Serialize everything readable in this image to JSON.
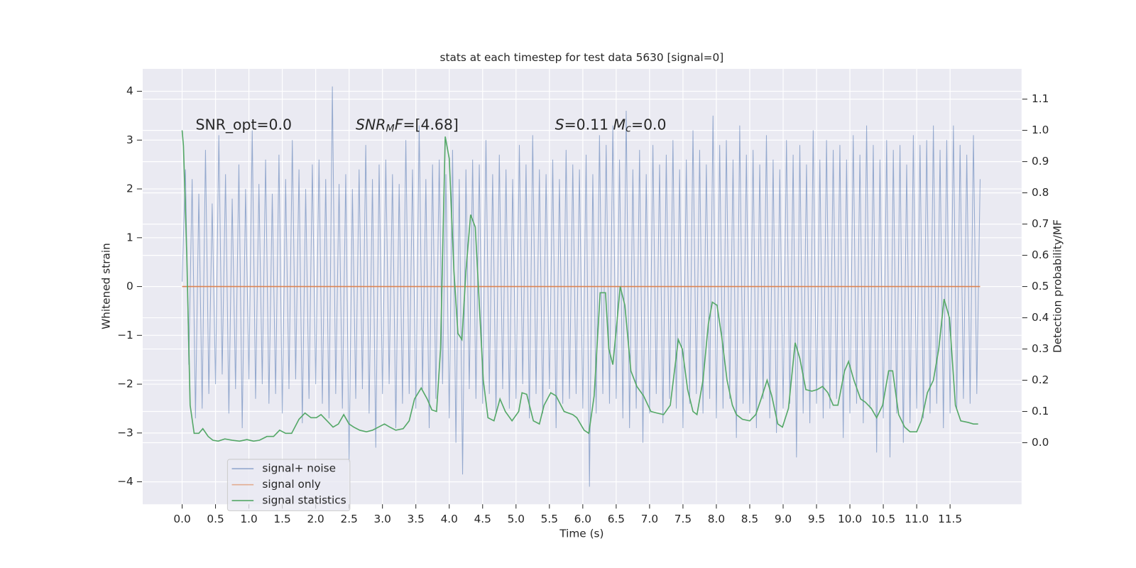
{
  "chart_data": {
    "type": "line",
    "title": "stats at each timestep for test data 5630 [signal=0]",
    "xlabel": "Time (s)",
    "ylabel": "Whitened strain",
    "y2label": "Detection probability/MF",
    "xlim": [
      -0.59,
      12.57
    ],
    "ylim": [
      -4.46,
      4.46
    ],
    "y2lim": [
      -0.197,
      1.197
    ],
    "xticks": [
      {
        "value": 0,
        "label": "0.0"
      },
      {
        "value": 0.5,
        "label": "0.5"
      },
      {
        "value": 1,
        "label": "1.0"
      },
      {
        "value": 1.5,
        "label": "1.5"
      },
      {
        "value": 2,
        "label": "2.0"
      },
      {
        "value": 2.5,
        "label": "2.5"
      },
      {
        "value": 3,
        "label": "3.0"
      },
      {
        "value": 3.5,
        "label": "3.5"
      },
      {
        "value": 4,
        "label": "4.0"
      },
      {
        "value": 4.5,
        "label": "4.5"
      },
      {
        "value": 5,
        "label": "5.0"
      },
      {
        "value": 5.5,
        "label": "5.5"
      },
      {
        "value": 6,
        "label": "6.0"
      },
      {
        "value": 6.5,
        "label": "6.5"
      },
      {
        "value": 7,
        "label": "7.0"
      },
      {
        "value": 7.5,
        "label": "7.5"
      },
      {
        "value": 8,
        "label": "8.0"
      },
      {
        "value": 8.5,
        "label": "8.5"
      },
      {
        "value": 9,
        "label": "9.0"
      },
      {
        "value": 9.5,
        "label": "9.5"
      },
      {
        "value": 10,
        "label": "10.0"
      },
      {
        "value": 10.5,
        "label": "10.5"
      },
      {
        "value": 11,
        "label": "11.0"
      },
      {
        "value": 11.5,
        "label": "11.5"
      }
    ],
    "yticks": [
      {
        "value": -4,
        "label": "−4"
      },
      {
        "value": -3,
        "label": "−3"
      },
      {
        "value": -2,
        "label": "−2"
      },
      {
        "value": -1,
        "label": "−1"
      },
      0,
      1,
      2,
      3,
      4
    ],
    "y2ticks": [
      {
        "value": 0,
        "label": "0.0"
      },
      {
        "value": 0.1,
        "label": "0.1"
      },
      {
        "value": 0.2,
        "label": "0.2"
      },
      {
        "value": 0.3,
        "label": "0.3"
      },
      {
        "value": 0.4,
        "label": "0.4"
      },
      {
        "value": 0.5,
        "label": "0.5"
      },
      {
        "value": 0.6,
        "label": "0.6"
      },
      {
        "value": 0.7,
        "label": "0.7"
      },
      {
        "value": 0.8,
        "label": "0.8"
      },
      {
        "value": 0.9,
        "label": "0.9"
      },
      {
        "value": 1,
        "label": "1.0"
      },
      {
        "value": 1.1,
        "label": "1.1"
      }
    ],
    "grid": true,
    "legend": "lower left",
    "annotations": [
      [
        {
          "text": "SNR_opt=0.0"
        }
      ],
      [
        {
          "text": "SNR",
          "italic": true
        },
        {
          "text": "M",
          "italic": true,
          "sub": true
        },
        {
          "text": "F",
          "italic": true
        },
        {
          "text": "=[4.68]"
        }
      ],
      [
        {
          "text": "S",
          "italic": true
        },
        {
          "text": "=0.11  "
        },
        {
          "text": "M",
          "italic": true
        },
        {
          "text": "c",
          "italic": true,
          "sub": true
        },
        {
          "text": "=0.0"
        }
      ]
    ],
    "series": [
      {
        "name": "signal+ noise",
        "color": "#4c72b0",
        "x": [
          0,
          0.05,
          0.1,
          0.15,
          0.2,
          0.25,
          0.3,
          0.35,
          0.4,
          0.45,
          0.5,
          0.55,
          0.6,
          0.65,
          0.7,
          0.75,
          0.8,
          0.85,
          0.9,
          0.95,
          1,
          1.05,
          1.1,
          1.15,
          1.2,
          1.25,
          1.3,
          1.35,
          1.4,
          1.45,
          1.5,
          1.55,
          1.6,
          1.65,
          1.7,
          1.75,
          1.8,
          1.85,
          1.9,
          1.95,
          2,
          2.05,
          2.1,
          2.15,
          2.2,
          2.25,
          2.3,
          2.35,
          2.4,
          2.45,
          2.5,
          2.55,
          2.6,
          2.65,
          2.7,
          2.75,
          2.8,
          2.85,
          2.9,
          2.95,
          3,
          3.05,
          3.1,
          3.15,
          3.2,
          3.25,
          3.3,
          3.35,
          3.4,
          3.45,
          3.5,
          3.55,
          3.6,
          3.65,
          3.7,
          3.75,
          3.8,
          3.85,
          3.9,
          3.95,
          4,
          4.05,
          4.1,
          4.15,
          4.2,
          4.25,
          4.3,
          4.35,
          4.4,
          4.45,
          4.5,
          4.55,
          4.6,
          4.65,
          4.7,
          4.75,
          4.8,
          4.85,
          4.9,
          4.95,
          5,
          5.05,
          5.1,
          5.15,
          5.2,
          5.25,
          5.3,
          5.35,
          5.4,
          5.45,
          5.5,
          5.55,
          5.6,
          5.65,
          5.7,
          5.75,
          5.8,
          5.85,
          5.9,
          5.95,
          6,
          6.05,
          6.1,
          6.15,
          6.2,
          6.25,
          6.3,
          6.35,
          6.4,
          6.45,
          6.5,
          6.55,
          6.6,
          6.65,
          6.7,
          6.75,
          6.8,
          6.85,
          6.9,
          6.95,
          7,
          7.05,
          7.1,
          7.15,
          7.2,
          7.25,
          7.3,
          7.35,
          7.4,
          7.45,
          7.5,
          7.55,
          7.6,
          7.65,
          7.7,
          7.75,
          7.8,
          7.85,
          7.9,
          7.95,
          8,
          8.05,
          8.1,
          8.15,
          8.2,
          8.25,
          8.3,
          8.35,
          8.4,
          8.45,
          8.5,
          8.55,
          8.6,
          8.65,
          8.7,
          8.75,
          8.8,
          8.85,
          8.9,
          8.95,
          9,
          9.05,
          9.1,
          9.15,
          9.2,
          9.25,
          9.3,
          9.35,
          9.4,
          9.45,
          9.5,
          9.55,
          9.6,
          9.65,
          9.7,
          9.75,
          9.8,
          9.85,
          9.9,
          9.95,
          10,
          10.05,
          10.1,
          10.15,
          10.2,
          10.25,
          10.3,
          10.35,
          10.4,
          10.45,
          10.5,
          10.55,
          10.6,
          10.65,
          10.7,
          10.75,
          10.8,
          10.85,
          10.9,
          10.95,
          11,
          11.05,
          11.1,
          11.15,
          11.2,
          11.25,
          11.3,
          11.35,
          11.4,
          11.45,
          11.5,
          11.55,
          11.6,
          11.65,
          11.7,
          11.75,
          11.8,
          11.85,
          11.9,
          11.95
        ],
        "values": [
          0.1,
          2.4,
          -1.6,
          2.2,
          -2.7,
          1.9,
          -2.5,
          2.8,
          -2.2,
          1.7,
          -2.0,
          3.1,
          -1.8,
          2.3,
          -2.6,
          1.8,
          -2.1,
          2.5,
          -2.9,
          2.0,
          -1.9,
          3.2,
          -2.3,
          2.1,
          -2.0,
          2.6,
          -2.4,
          1.9,
          -2.2,
          2.7,
          -2.6,
          2.2,
          -2.1,
          3.0,
          -1.9,
          2.4,
          -2.8,
          2.0,
          -2.3,
          2.5,
          -2.0,
          2.6,
          -2.4,
          2.2,
          -2.7,
          4.1,
          -2.2,
          2.1,
          -2.5,
          2.3,
          -3.6,
          2.0,
          -2.3,
          2.4,
          -2.1,
          2.9,
          -2.6,
          2.2,
          -3.3,
          2.5,
          -2.2,
          2.6,
          -2.0,
          2.3,
          -2.9,
          2.1,
          -2.4,
          3.0,
          -2.2,
          2.4,
          -2.5,
          3.3,
          -2.1,
          2.2,
          -2.9,
          2.5,
          -2.3,
          2.6,
          -2.0,
          2.3,
          -2.7,
          2.8,
          -3.2,
          2.2,
          -3.85,
          2.4,
          -2.1,
          2.6,
          -2.3,
          2.5,
          -2.4,
          3.0,
          -2.2,
          2.3,
          -2.6,
          2.7,
          -2.1,
          2.4,
          -2.5,
          2.2,
          -2.3,
          2.9,
          -2.0,
          2.5,
          -2.7,
          3.1,
          -2.2,
          2.4,
          -2.6,
          2.3,
          -2.1,
          2.6,
          -2.9,
          2.2,
          -2.4,
          2.8,
          -2.3,
          2.5,
          -2.2,
          2.4,
          -2.5,
          2.7,
          -4.1,
          2.3,
          -2.6,
          3.1,
          -2.2,
          2.9,
          -2.4,
          3.3,
          -2.3,
          2.6,
          -2.7,
          3.6,
          -2.9,
          2.4,
          -2.5,
          2.8,
          -3.2,
          2.3,
          -2.6,
          2.9,
          -2.2,
          2.5,
          -2.8,
          2.7,
          -2.3,
          3.0,
          -2.5,
          2.4,
          -2.9,
          2.6,
          -2.4,
          3.2,
          -2.2,
          2.8,
          -2.6,
          2.5,
          -2.3,
          3.5,
          -2.7,
          2.9,
          -2.5,
          3.0,
          -2.3,
          2.6,
          -3.1,
          3.3,
          -2.4,
          2.7,
          -2.6,
          2.8,
          -2.9,
          2.5,
          -2.3,
          3.1,
          -2.7,
          2.6,
          -3.0,
          2.4,
          -2.5,
          3.0,
          -2.4,
          2.7,
          -3.5,
          2.9,
          -2.6,
          2.5,
          -2.8,
          3.2,
          -2.4,
          2.6,
          -2.7,
          3.0,
          -2.5,
          2.8,
          -2.3,
          2.9,
          -3.1,
          2.6,
          -2.6,
          3.1,
          -2.4,
          2.7,
          -2.8,
          3.3,
          -2.5,
          2.9,
          -3.4,
          2.6,
          -2.7,
          3.0,
          -3.5,
          2.8,
          -2.6,
          2.9,
          -3.2,
          2.5,
          -2.8,
          3.1,
          -2.5,
          2.9,
          -2.7,
          3.0,
          -2.6,
          3.3,
          -2.4,
          2.8,
          -2.9,
          3.0,
          -2.6,
          3.3,
          -2.5,
          2.9,
          -2.3,
          2.7,
          -2.4,
          3.1,
          -2.2,
          2.2
        ]
      },
      {
        "name": "signal only",
        "color": "#dd8452",
        "x": [
          0,
          11.95
        ],
        "values": [
          0,
          0
        ]
      },
      {
        "name": "signal statistics",
        "color": "#55a868",
        "axis": "y2",
        "x": [
          0,
          0.02,
          0.07,
          0.12,
          0.18,
          0.25,
          0.31,
          0.39,
          0.46,
          0.54,
          0.64,
          0.75,
          0.86,
          0.97,
          1.07,
          1.16,
          1.27,
          1.37,
          1.46,
          1.55,
          1.64,
          1.75,
          1.84,
          1.93,
          2.01,
          2.08,
          2.17,
          2.26,
          2.34,
          2.42,
          2.5,
          2.57,
          2.66,
          2.76,
          2.85,
          2.94,
          3.03,
          3.11,
          3.2,
          3.31,
          3.4,
          3.48,
          3.58,
          3.67,
          3.74,
          3.81,
          3.87,
          3.94,
          4.0,
          4.07,
          4.13,
          4.19,
          4.25,
          4.32,
          4.39,
          4.51,
          4.58,
          4.67,
          4.76,
          4.84,
          4.94,
          5.04,
          5.09,
          5.16,
          5.26,
          5.35,
          5.42,
          5.52,
          5.6,
          5.72,
          5.85,
          5.91,
          6.02,
          6.09,
          6.17,
          6.26,
          6.34,
          6.39,
          6.45,
          6.5,
          6.56,
          6.63,
          6.72,
          6.81,
          6.91,
          7.02,
          7.11,
          7.21,
          7.31,
          7.43,
          7.49,
          7.57,
          7.65,
          7.71,
          7.8,
          7.88,
          7.94,
          8.01,
          8.08,
          8.16,
          8.24,
          8.3,
          8.39,
          8.5,
          8.59,
          8.67,
          8.76,
          8.83,
          8.92,
          8.99,
          9.08,
          9.18,
          9.25,
          9.34,
          9.43,
          9.51,
          9.59,
          9.67,
          9.75,
          9.82,
          9.92,
          9.98,
          10.06,
          10.16,
          10.23,
          10.32,
          10.4,
          10.49,
          10.58,
          10.64,
          10.73,
          10.82,
          10.9,
          11.0,
          11.07,
          11.16,
          11.25,
          11.33,
          11.41,
          11.49,
          11.58,
          11.66,
          11.77,
          11.85,
          11.92
        ],
        "values": [
          1.0,
          0.95,
          0.6,
          0.12,
          0.03,
          0.03,
          0.045,
          0.02,
          0.008,
          0.005,
          0.012,
          0.008,
          0.005,
          0.01,
          0.005,
          0.008,
          0.02,
          0.02,
          0.04,
          0.03,
          0.03,
          0.075,
          0.095,
          0.08,
          0.08,
          0.09,
          0.07,
          0.05,
          0.06,
          0.09,
          0.06,
          0.05,
          0.04,
          0.035,
          0.04,
          0.05,
          0.06,
          0.05,
          0.04,
          0.045,
          0.07,
          0.14,
          0.175,
          0.14,
          0.105,
          0.1,
          0.3,
          0.98,
          0.91,
          0.55,
          0.35,
          0.33,
          0.55,
          0.73,
          0.69,
          0.2,
          0.08,
          0.07,
          0.14,
          0.1,
          0.07,
          0.1,
          0.16,
          0.155,
          0.07,
          0.06,
          0.12,
          0.16,
          0.15,
          0.1,
          0.09,
          0.08,
          0.04,
          0.03,
          0.15,
          0.48,
          0.48,
          0.3,
          0.25,
          0.36,
          0.5,
          0.44,
          0.23,
          0.18,
          0.15,
          0.1,
          0.095,
          0.09,
          0.12,
          0.33,
          0.3,
          0.17,
          0.1,
          0.09,
          0.2,
          0.38,
          0.45,
          0.44,
          0.34,
          0.2,
          0.12,
          0.09,
          0.075,
          0.07,
          0.09,
          0.14,
          0.2,
          0.15,
          0.06,
          0.05,
          0.11,
          0.32,
          0.27,
          0.17,
          0.165,
          0.17,
          0.18,
          0.16,
          0.12,
          0.12,
          0.23,
          0.26,
          0.2,
          0.14,
          0.13,
          0.11,
          0.08,
          0.12,
          0.23,
          0.23,
          0.09,
          0.05,
          0.035,
          0.035,
          0.07,
          0.16,
          0.2,
          0.3,
          0.46,
          0.4,
          0.12,
          0.07,
          0.065,
          0.06,
          0.06
        ]
      }
    ]
  }
}
